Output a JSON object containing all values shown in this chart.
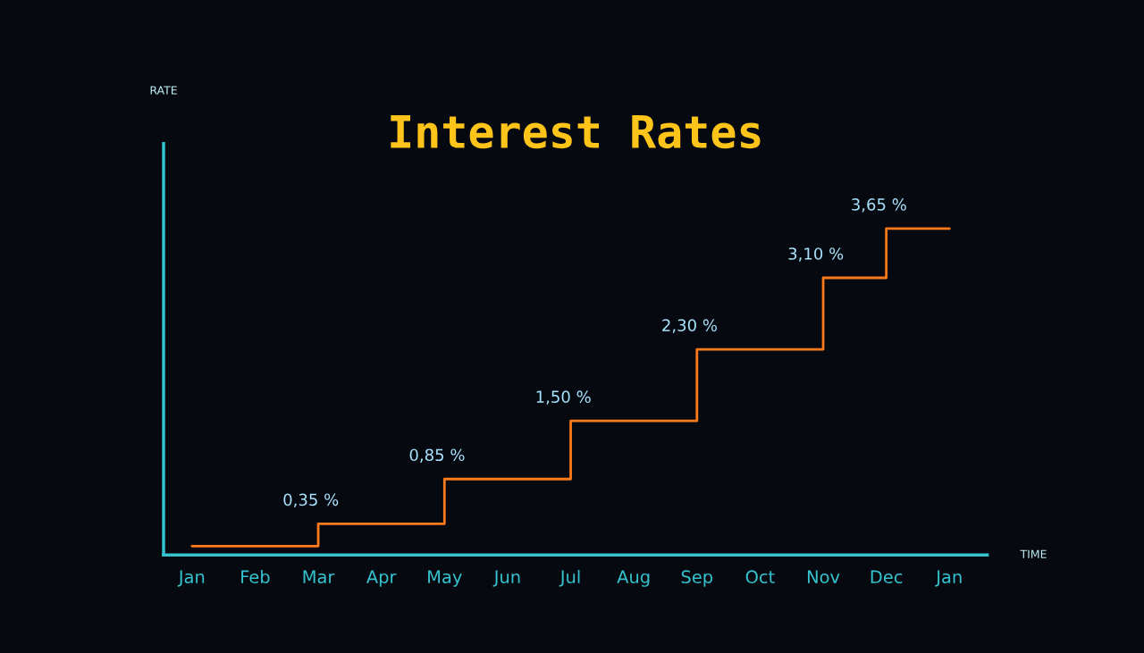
{
  "chart_data": {
    "type": "step",
    "title": "Interest Rates",
    "xlabel": "TIME",
    "ylabel": "RATE",
    "categories": [
      "Jan",
      "Feb",
      "Mar",
      "Apr",
      "May",
      "Jun",
      "Jul",
      "Aug",
      "Sep",
      "Oct",
      "Nov",
      "Dec",
      "Jan"
    ],
    "series": [
      {
        "color": "#ff7a1a",
        "values": [
          0.1,
          0.1,
          0.35,
          0.35,
          0.85,
          0.85,
          1.5,
          1.5,
          2.3,
          2.3,
          3.1,
          3.65,
          3.65
        ],
        "value_labels": [
          null,
          null,
          "0,35 %",
          null,
          "0,85 %",
          null,
          "1,50 %",
          null,
          "2,30 %",
          null,
          "3,10 %",
          "3,65 %",
          null
        ]
      }
    ],
    "ylim": [
      0,
      4.6
    ],
    "tick_labels": "x",
    "grid": false,
    "legend": false,
    "marker": "none",
    "line_style": "solid"
  }
}
